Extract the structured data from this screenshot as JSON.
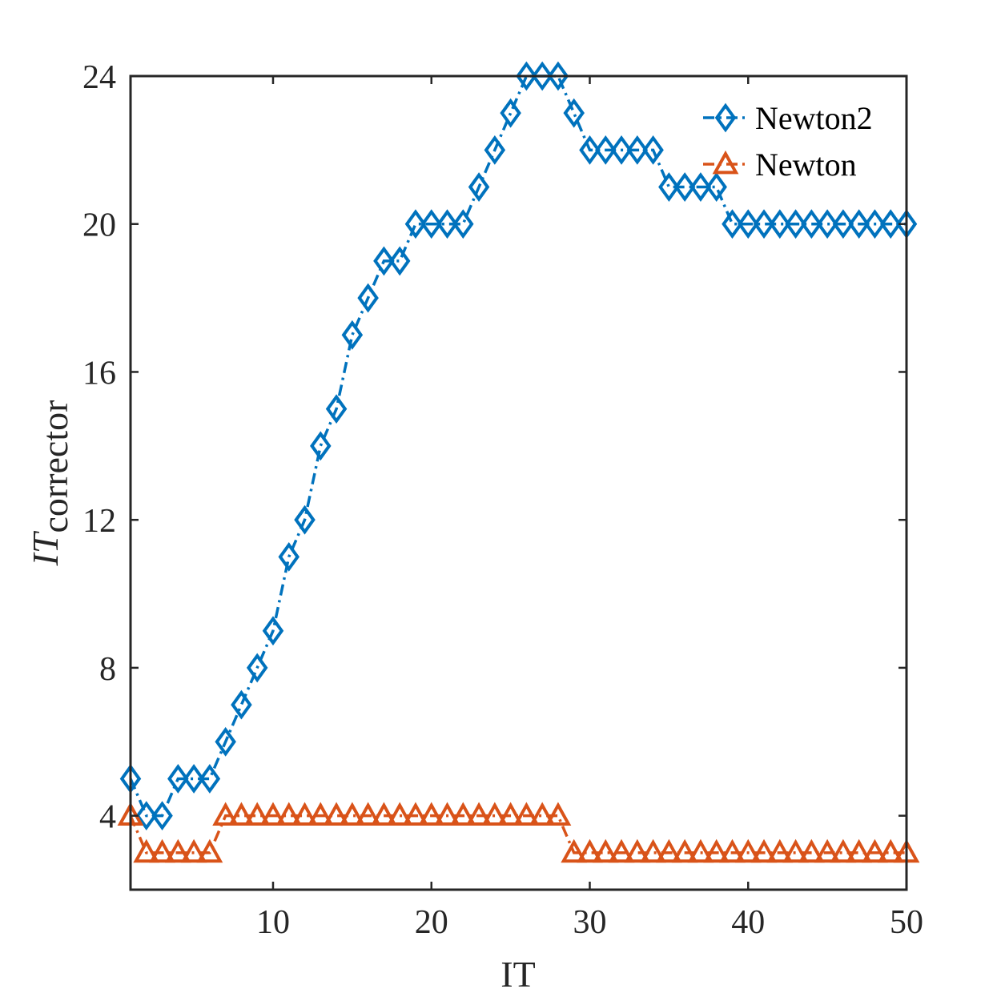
{
  "chart_data": {
    "type": "line",
    "xlabel": "IT",
    "ylabel": {
      "main": "IT",
      "subscript": "corrector"
    },
    "xlim": [
      1,
      50
    ],
    "ylim": [
      2,
      24
    ],
    "xticks": [
      10,
      20,
      30,
      40,
      50
    ],
    "yticks": [
      4,
      8,
      12,
      16,
      20,
      24
    ],
    "grid": false,
    "legend_position": "top-right",
    "x": [
      1,
      2,
      3,
      4,
      5,
      6,
      7,
      8,
      9,
      10,
      11,
      12,
      13,
      14,
      15,
      16,
      17,
      18,
      19,
      20,
      21,
      22,
      23,
      24,
      25,
      26,
      27,
      28,
      29,
      30,
      31,
      32,
      33,
      34,
      35,
      36,
      37,
      38,
      39,
      40,
      41,
      42,
      43,
      44,
      45,
      46,
      47,
      48,
      49,
      50
    ],
    "series": [
      {
        "name": "Newton2",
        "color": "#0072BD",
        "marker": "diamond",
        "values": [
          5,
          4,
          4,
          5,
          5,
          5,
          6,
          7,
          8,
          9,
          11,
          12,
          14,
          15,
          17,
          18,
          19,
          19,
          20,
          20,
          20,
          20,
          21,
          22,
          23,
          24,
          24,
          24,
          23,
          22,
          22,
          22,
          22,
          22,
          21,
          21,
          21,
          21,
          20,
          20,
          20,
          20,
          20,
          20,
          20,
          20,
          20,
          20,
          20,
          20
        ]
      },
      {
        "name": "Newton",
        "color": "#D95319",
        "marker": "triangle",
        "values": [
          4,
          3,
          3,
          3,
          3,
          3,
          4,
          4,
          4,
          4,
          4,
          4,
          4,
          4,
          4,
          4,
          4,
          4,
          4,
          4,
          4,
          4,
          4,
          4,
          4,
          4,
          4,
          4,
          3,
          3,
          3,
          3,
          3,
          3,
          3,
          3,
          3,
          3,
          3,
          3,
          3,
          3,
          3,
          3,
          3,
          3,
          3,
          3,
          3,
          3
        ]
      }
    ]
  }
}
